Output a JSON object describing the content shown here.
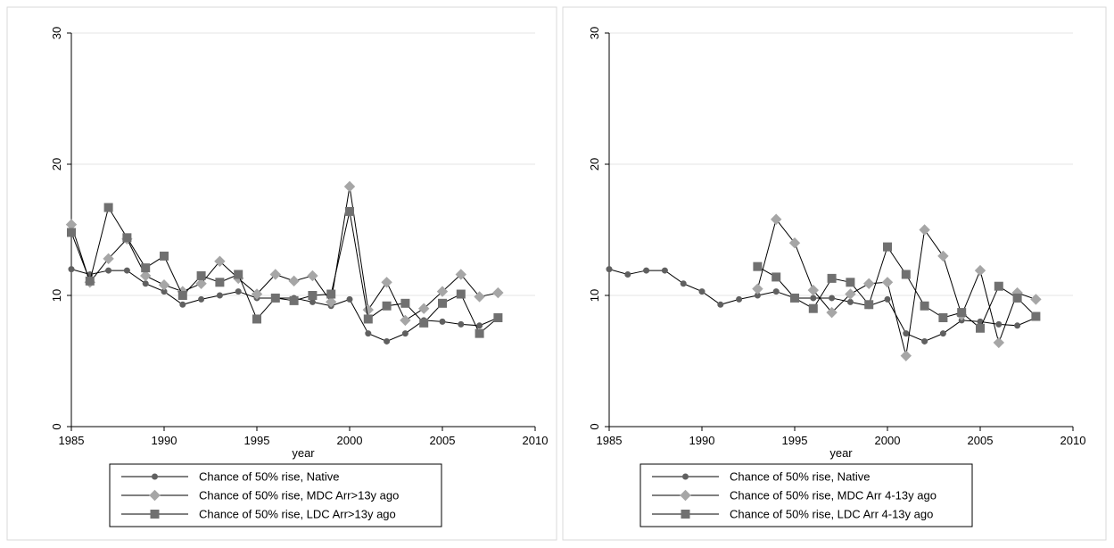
{
  "chart_data": [
    {
      "type": "line",
      "xlabel": "year",
      "ylabel": "",
      "xlim": [
        1985,
        2010
      ],
      "ylim": [
        0,
        30
      ],
      "xticks": [
        1985,
        1990,
        1995,
        2000,
        2005,
        2010
      ],
      "yticks": [
        0,
        10,
        20,
        30
      ],
      "grid": true,
      "legend_position": "bottom",
      "series": [
        {
          "name": "Chance of 50% rise, Native",
          "marker": "circle",
          "color": "#606060",
          "x": [
            1985,
            1986,
            1987,
            1988,
            1989,
            1990,
            1991,
            1992,
            1993,
            1994,
            1995,
            1996,
            1997,
            1998,
            1999,
            2000,
            2001,
            2002,
            2003,
            2004,
            2005,
            2006,
            2007,
            2008
          ],
          "y": [
            12.0,
            11.6,
            11.9,
            11.9,
            10.9,
            10.3,
            9.3,
            9.7,
            10.0,
            10.3,
            9.8,
            9.8,
            9.8,
            9.5,
            9.2,
            9.7,
            7.1,
            6.5,
            7.1,
            8.1,
            8.0,
            7.8,
            7.7,
            8.3
          ]
        },
        {
          "name": "Chance of 50% rise, MDC Arr>13y ago",
          "marker": "diamond",
          "color": "#a6a6a6",
          "x": [
            1985,
            1986,
            1987,
            1988,
            1989,
            1990,
            1991,
            1992,
            1993,
            1994,
            1995,
            1996,
            1997,
            1998,
            1999,
            2000,
            2001,
            2002,
            2003,
            2004,
            2005,
            2006,
            2007,
            2008
          ],
          "y": [
            15.4,
            11.0,
            12.8,
            14.3,
            11.5,
            10.8,
            10.3,
            10.9,
            12.6,
            11.3,
            10.1,
            11.6,
            11.1,
            11.5,
            9.5,
            18.3,
            8.9,
            11.0,
            8.1,
            9.0,
            10.3,
            11.6,
            9.9,
            10.2
          ]
        },
        {
          "name": "Chance of 50% rise, LDC Arr>13y ago",
          "marker": "square",
          "color": "#707070",
          "x": [
            1985,
            1986,
            1987,
            1988,
            1989,
            1990,
            1991,
            1992,
            1993,
            1994,
            1995,
            1996,
            1997,
            1998,
            1999,
            2000,
            2001,
            2002,
            2003,
            2004,
            2005,
            2006,
            2007,
            2008
          ],
          "y": [
            14.8,
            11.1,
            16.7,
            14.4,
            12.1,
            13.0,
            10.0,
            11.5,
            11.0,
            11.6,
            8.2,
            9.8,
            9.6,
            10.0,
            10.1,
            16.4,
            8.2,
            9.2,
            9.4,
            7.9,
            9.4,
            10.1,
            7.1,
            8.3
          ]
        }
      ]
    },
    {
      "type": "line",
      "xlabel": "year",
      "ylabel": "",
      "xlim": [
        1985,
        2010
      ],
      "ylim": [
        0,
        30
      ],
      "xticks": [
        1985,
        1990,
        1995,
        2000,
        2005,
        2010
      ],
      "yticks": [
        0,
        10,
        20,
        30
      ],
      "grid": true,
      "legend_position": "bottom",
      "series": [
        {
          "name": "Chance of 50% rise, Native",
          "marker": "circle",
          "color": "#606060",
          "x": [
            1985,
            1986,
            1987,
            1988,
            1989,
            1990,
            1991,
            1992,
            1993,
            1994,
            1995,
            1996,
            1997,
            1998,
            1999,
            2000,
            2001,
            2002,
            2003,
            2004,
            2005,
            2006,
            2007,
            2008
          ],
          "y": [
            12.0,
            11.6,
            11.9,
            11.9,
            10.9,
            10.3,
            9.3,
            9.7,
            10.0,
            10.3,
            9.8,
            9.8,
            9.8,
            9.5,
            9.2,
            9.7,
            7.1,
            6.5,
            7.1,
            8.1,
            8.0,
            7.8,
            7.7,
            8.3
          ]
        },
        {
          "name": "Chance of 50% rise, MDC Arr 4-13y ago",
          "marker": "diamond",
          "color": "#a6a6a6",
          "x": [
            1993,
            1994,
            1995,
            1996,
            1997,
            1998,
            1999,
            2000,
            2001,
            2002,
            2003,
            2004,
            2005,
            2006,
            2007,
            2008
          ],
          "y": [
            10.5,
            15.8,
            14.0,
            10.4,
            8.7,
            10.1,
            10.9,
            11.0,
            5.4,
            15.0,
            13.0,
            8.5,
            11.9,
            6.4,
            10.2,
            9.7
          ]
        },
        {
          "name": "Chance of 50% rise, LDC Arr 4-13y ago",
          "marker": "square",
          "color": "#707070",
          "x": [
            1993,
            1994,
            1995,
            1996,
            1997,
            1998,
            1999,
            2000,
            2001,
            2002,
            2003,
            2004,
            2005,
            2006,
            2007,
            2008
          ],
          "y": [
            12.2,
            11.4,
            9.8,
            9.0,
            11.3,
            11.0,
            9.3,
            13.7,
            11.6,
            9.2,
            8.3,
            8.7,
            7.5,
            10.7,
            9.8,
            8.4
          ]
        }
      ]
    }
  ]
}
